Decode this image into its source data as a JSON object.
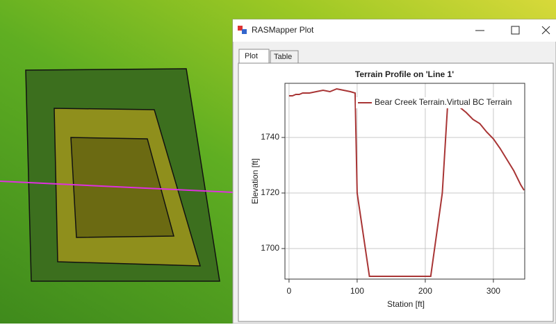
{
  "window": {
    "title": "RASMapper Plot",
    "tabs": [
      "Plot",
      "Table"
    ]
  },
  "chart_data": {
    "type": "line",
    "title": "Terrain Profile on 'Line 1'",
    "x_label": "Station [ft]",
    "y_label": "Elevation [ft]",
    "xlim": [
      -6,
      346
    ],
    "ylim": [
      1689,
      1759.5
    ],
    "xticks": [
      0,
      100,
      200,
      300
    ],
    "yticks": [
      1700,
      1720,
      1740
    ],
    "grid": true,
    "legend": "top-right",
    "series": [
      {
        "name": "Bear Creek Terrain.Virtual BC Terrain",
        "color": "#a83434",
        "x": [
          0,
          5,
          10,
          15,
          20,
          30,
          40,
          50,
          60,
          70,
          80,
          90,
          97,
          100,
          118,
          150,
          180,
          208,
          225,
          233,
          240,
          250,
          260,
          270,
          280,
          290,
          300,
          310,
          320,
          330,
          340,
          345
        ],
        "values": [
          1755,
          1755,
          1755.5,
          1755.5,
          1756,
          1756,
          1756.5,
          1757,
          1756.5,
          1757.5,
          1757,
          1756.5,
          1756,
          1720,
          1690,
          1690,
          1690,
          1690,
          1720,
          1752.5,
          1752,
          1751,
          1749,
          1746.5,
          1745,
          1742,
          1739.5,
          1736,
          1732,
          1728,
          1723,
          1721
        ]
      }
    ]
  }
}
